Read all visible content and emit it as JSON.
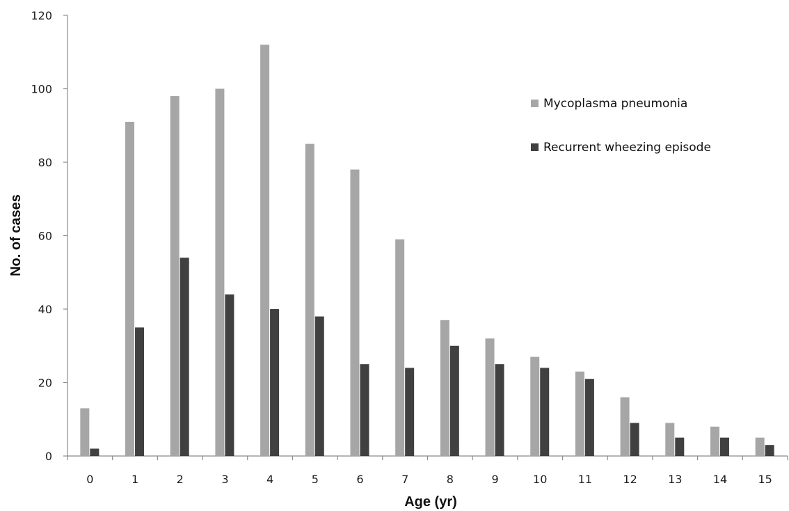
{
  "chart_data": {
    "type": "bar",
    "xlabel": "Age (yr)",
    "ylabel": "No. of cases",
    "ylim": [
      0,
      120
    ],
    "yticks": [
      "0",
      "20",
      "40",
      "60",
      "80",
      "100",
      "120"
    ],
    "categories": [
      "0",
      "1",
      "2",
      "3",
      "4",
      "5",
      "6",
      "7",
      "8",
      "9",
      "10",
      "11",
      "12",
      "13",
      "14",
      "15"
    ],
    "series": [
      {
        "name": "Mycoplasma pneumonia",
        "color": "#a6a6a6",
        "values": [
          13,
          91,
          98,
          100,
          112,
          85,
          78,
          59,
          37,
          32,
          27,
          23,
          16,
          9,
          8,
          5
        ]
      },
      {
        "name": "Recurrent wheezing episode",
        "color": "#404040",
        "values": [
          2,
          35,
          54,
          44,
          40,
          38,
          25,
          24,
          30,
          25,
          24,
          21,
          9,
          5,
          5,
          3
        ]
      }
    ],
    "grid": false,
    "legend_position": "top-right"
  }
}
